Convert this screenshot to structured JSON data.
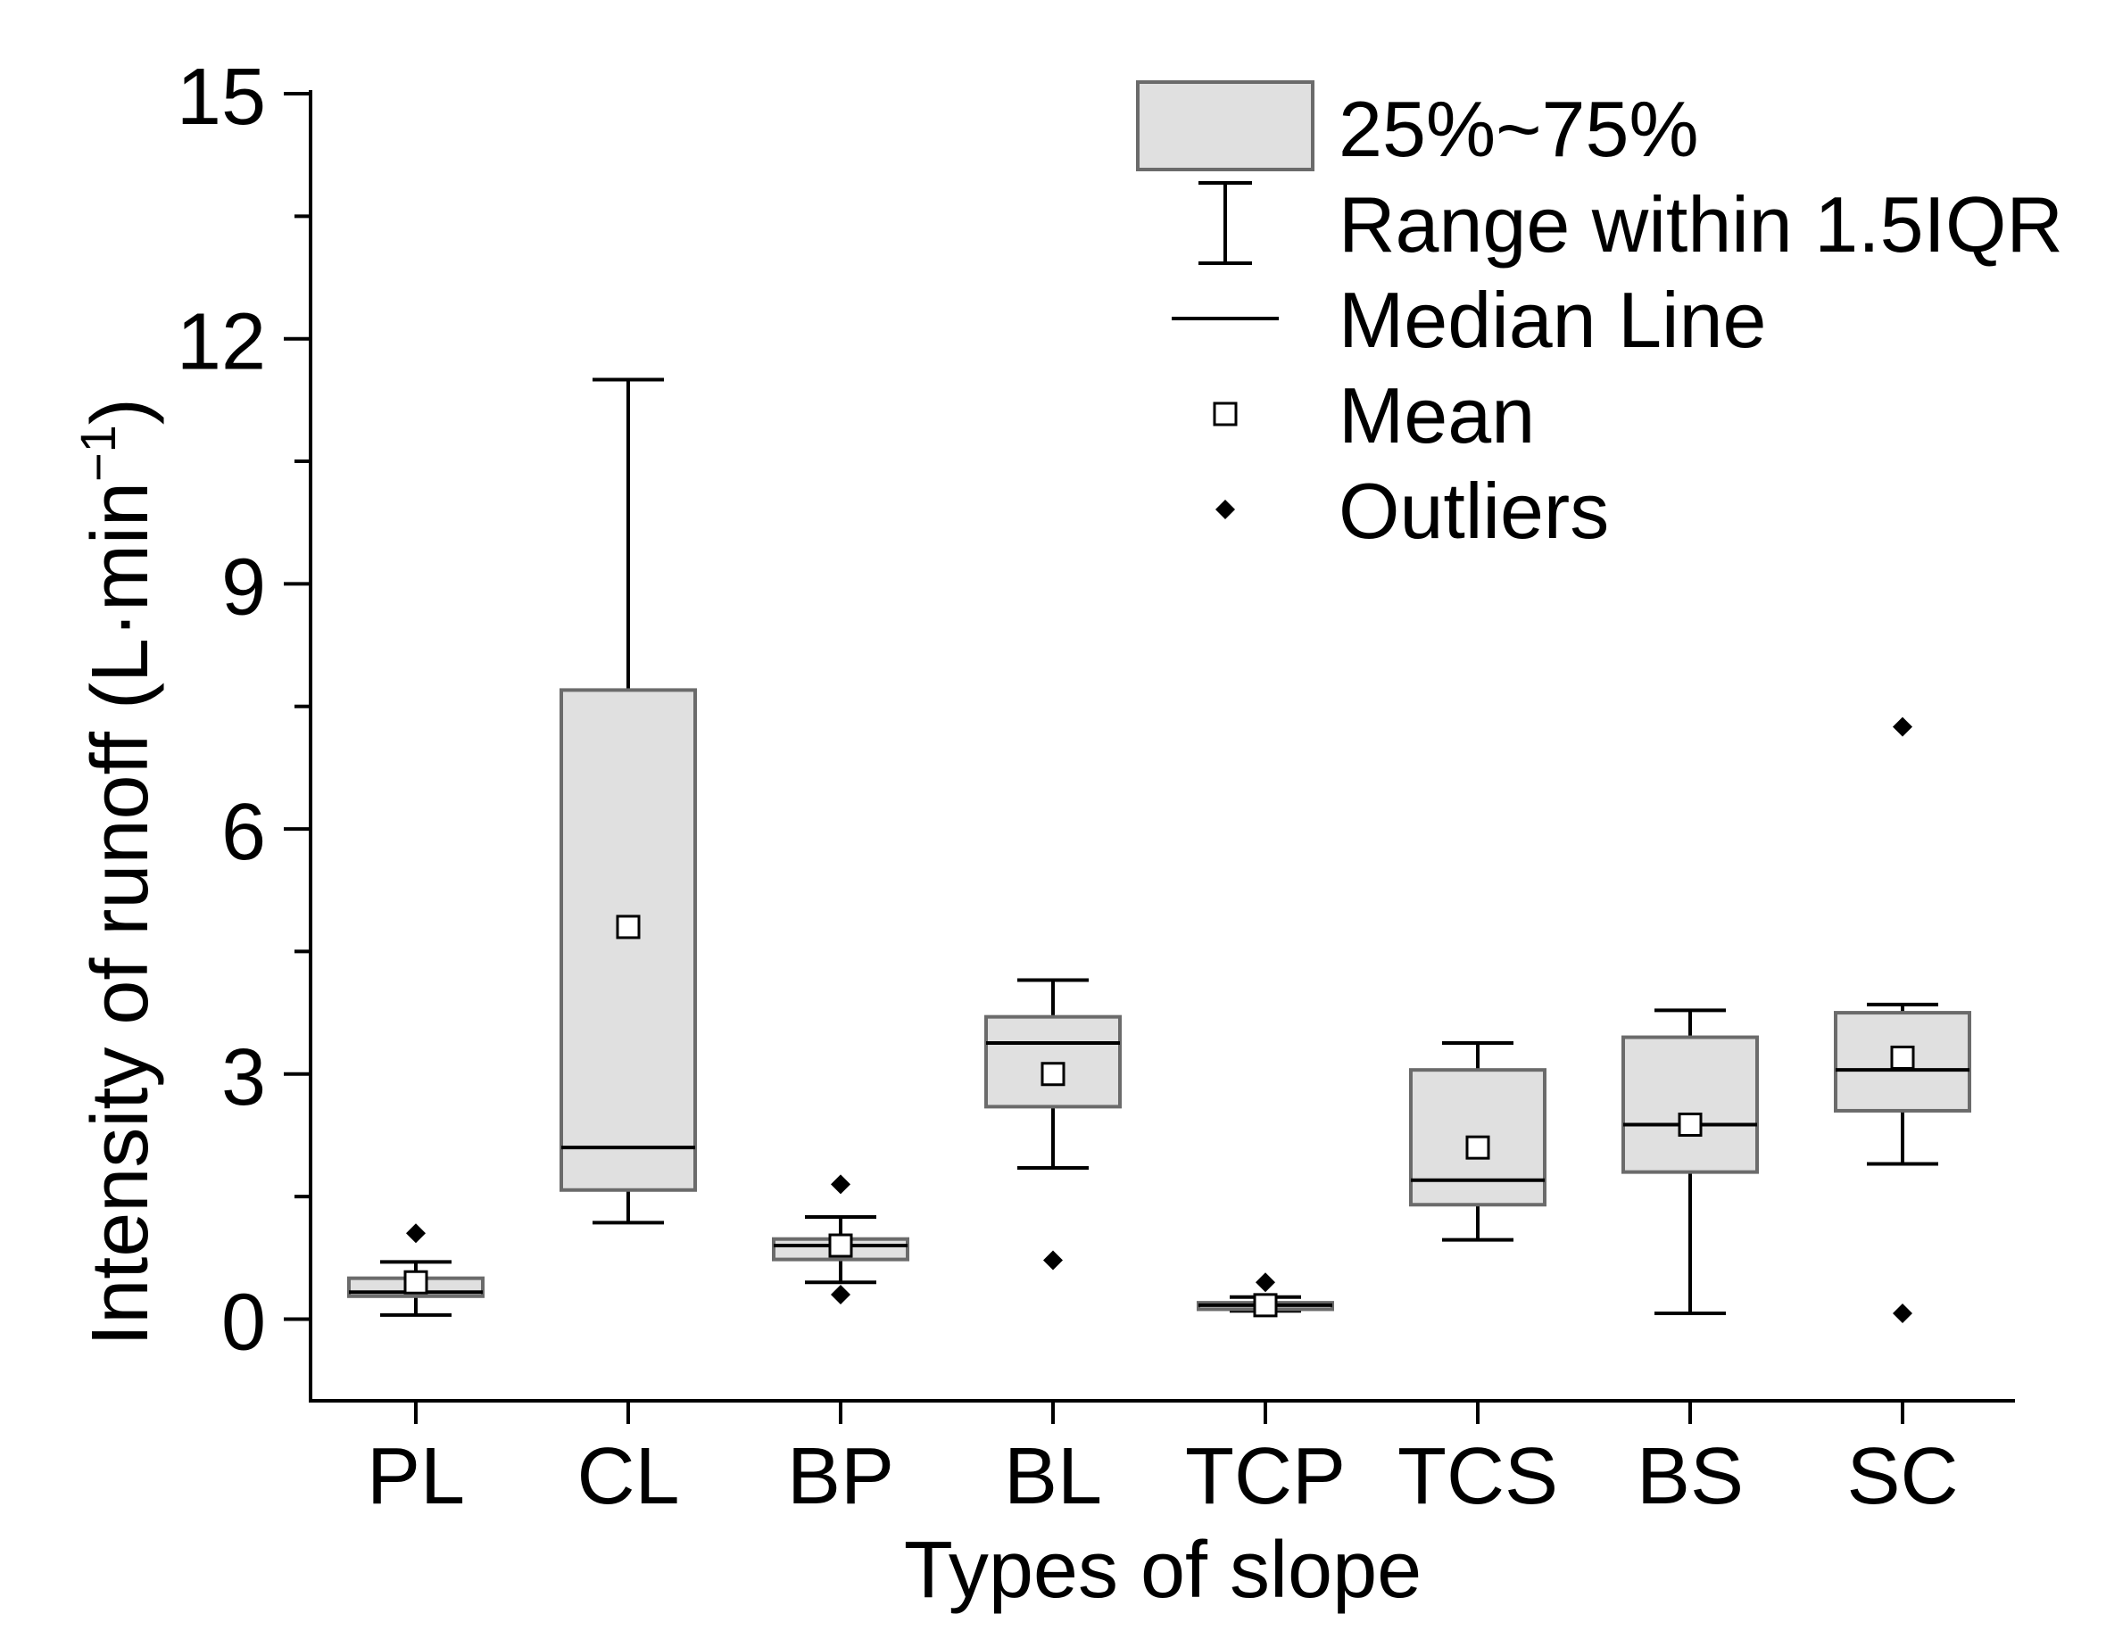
{
  "chart_data": {
    "type": "box",
    "title": "",
    "xlabel": "Types of slope",
    "ylabel": "Intensity of runoff (L·min",
    "ylabel_superscript": "−1",
    "ylabel_suffix": ")",
    "ylim": [
      -1,
      15
    ],
    "yticks": [
      0,
      3,
      6,
      9,
      12,
      15
    ],
    "categories": [
      "PL",
      "CL",
      "BP",
      "BL",
      "TCP",
      "TCS",
      "BS",
      "SC"
    ],
    "boxes": [
      {
        "category": "PL",
        "whisker_low": 0.05,
        "q1": 0.28,
        "median": 0.33,
        "q3": 0.5,
        "whisker_high": 0.7,
        "mean": 0.45,
        "outliers": [
          1.05
        ]
      },
      {
        "category": "CL",
        "whisker_low": 1.18,
        "q1": 1.58,
        "median": 2.1,
        "q3": 7.7,
        "whisker_high": 11.5,
        "mean": 4.8,
        "outliers": []
      },
      {
        "category": "BP",
        "whisker_low": 0.45,
        "q1": 0.73,
        "median": 0.9,
        "q3": 0.98,
        "whisker_high": 1.25,
        "mean": 0.9,
        "outliers": [
          1.65,
          0.3
        ]
      },
      {
        "category": "BL",
        "whisker_low": 1.85,
        "q1": 2.6,
        "median": 3.38,
        "q3": 3.7,
        "whisker_high": 4.15,
        "mean": 3.0,
        "outliers": [
          0.72
        ]
      },
      {
        "category": "TCP",
        "whisker_low": 0.1,
        "q1": 0.12,
        "median": 0.17,
        "q3": 0.2,
        "whisker_high": 0.27,
        "mean": 0.17,
        "outliers": [
          0.45
        ]
      },
      {
        "category": "TCS",
        "whisker_low": 0.97,
        "q1": 1.4,
        "median": 1.7,
        "q3": 3.05,
        "whisker_high": 3.38,
        "mean": 2.1,
        "outliers": []
      },
      {
        "category": "BS",
        "whisker_low": 0.07,
        "q1": 1.8,
        "median": 2.38,
        "q3": 3.45,
        "whisker_high": 3.78,
        "mean": 2.38,
        "outliers": []
      },
      {
        "category": "SC",
        "whisker_low": 1.9,
        "q1": 2.55,
        "median": 3.05,
        "q3": 3.75,
        "whisker_high": 3.85,
        "mean": 3.2,
        "outliers": [
          7.25,
          0.07
        ]
      }
    ],
    "legend": {
      "position": "top-right",
      "entries": [
        {
          "kind": "box",
          "label": "25%~75%"
        },
        {
          "kind": "range",
          "label": "Range within 1.5IQR"
        },
        {
          "kind": "median",
          "label": "Median Line"
        },
        {
          "kind": "mean",
          "label": "Mean"
        },
        {
          "kind": "outlier",
          "label": "Outliers"
        }
      ]
    },
    "colors": {
      "box_fill": "#e0e0e0",
      "box_stroke": "#6b6b6b",
      "line": "#000000",
      "mean_fill": "#ffffff"
    }
  }
}
